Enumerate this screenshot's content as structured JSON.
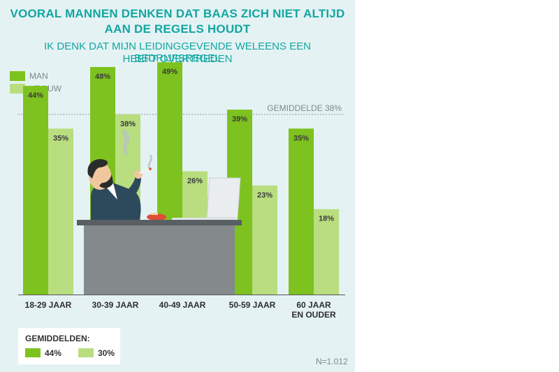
{
  "title_line1": "VOORAL MANNEN DENKEN DAT BAAS ZICH NIET ALTIJD",
  "title_line2": "AAN DE REGELS HOUDT",
  "subtitle_line1": "IK DENK DAT MIJN LEIDINGGEVENDE WELEENS EEN BEDRIJFSREGEL",
  "subtitle_line2": "HEEFT OVERTREDEN",
  "colors": {
    "man": "#7dc21e",
    "vrouw": "#b9de7f",
    "title": "#12a6a0"
  },
  "chart_data": {
    "type": "bar",
    "categories": [
      [
        "18-29 JAAR"
      ],
      [
        "30-39 JAAR"
      ],
      [
        "40-49 JAAR"
      ],
      [
        "50-59 JAAR"
      ],
      [
        "60 JAAR",
        "EN OUDER"
      ]
    ],
    "series": [
      {
        "name": "MAN",
        "values": [
          44,
          48,
          49,
          39,
          35
        ],
        "labels": [
          "44%",
          "48%",
          "49%",
          "39%",
          "35%"
        ]
      },
      {
        "name": "VROUW",
        "values": [
          35,
          38,
          26,
          23,
          18
        ],
        "labels": [
          "35%",
          "38%",
          "26%",
          "23%",
          "18%"
        ]
      }
    ],
    "reference_line": {
      "value": 38,
      "label": "GEMIDDELDE 38%"
    },
    "ylim": [
      0,
      53
    ],
    "legend": "top-left",
    "grid": false
  },
  "averages": {
    "heading": "GEMIDDELDEN:",
    "man": "44%",
    "vrouw": "30%"
  },
  "sample_size": "N=1.012"
}
